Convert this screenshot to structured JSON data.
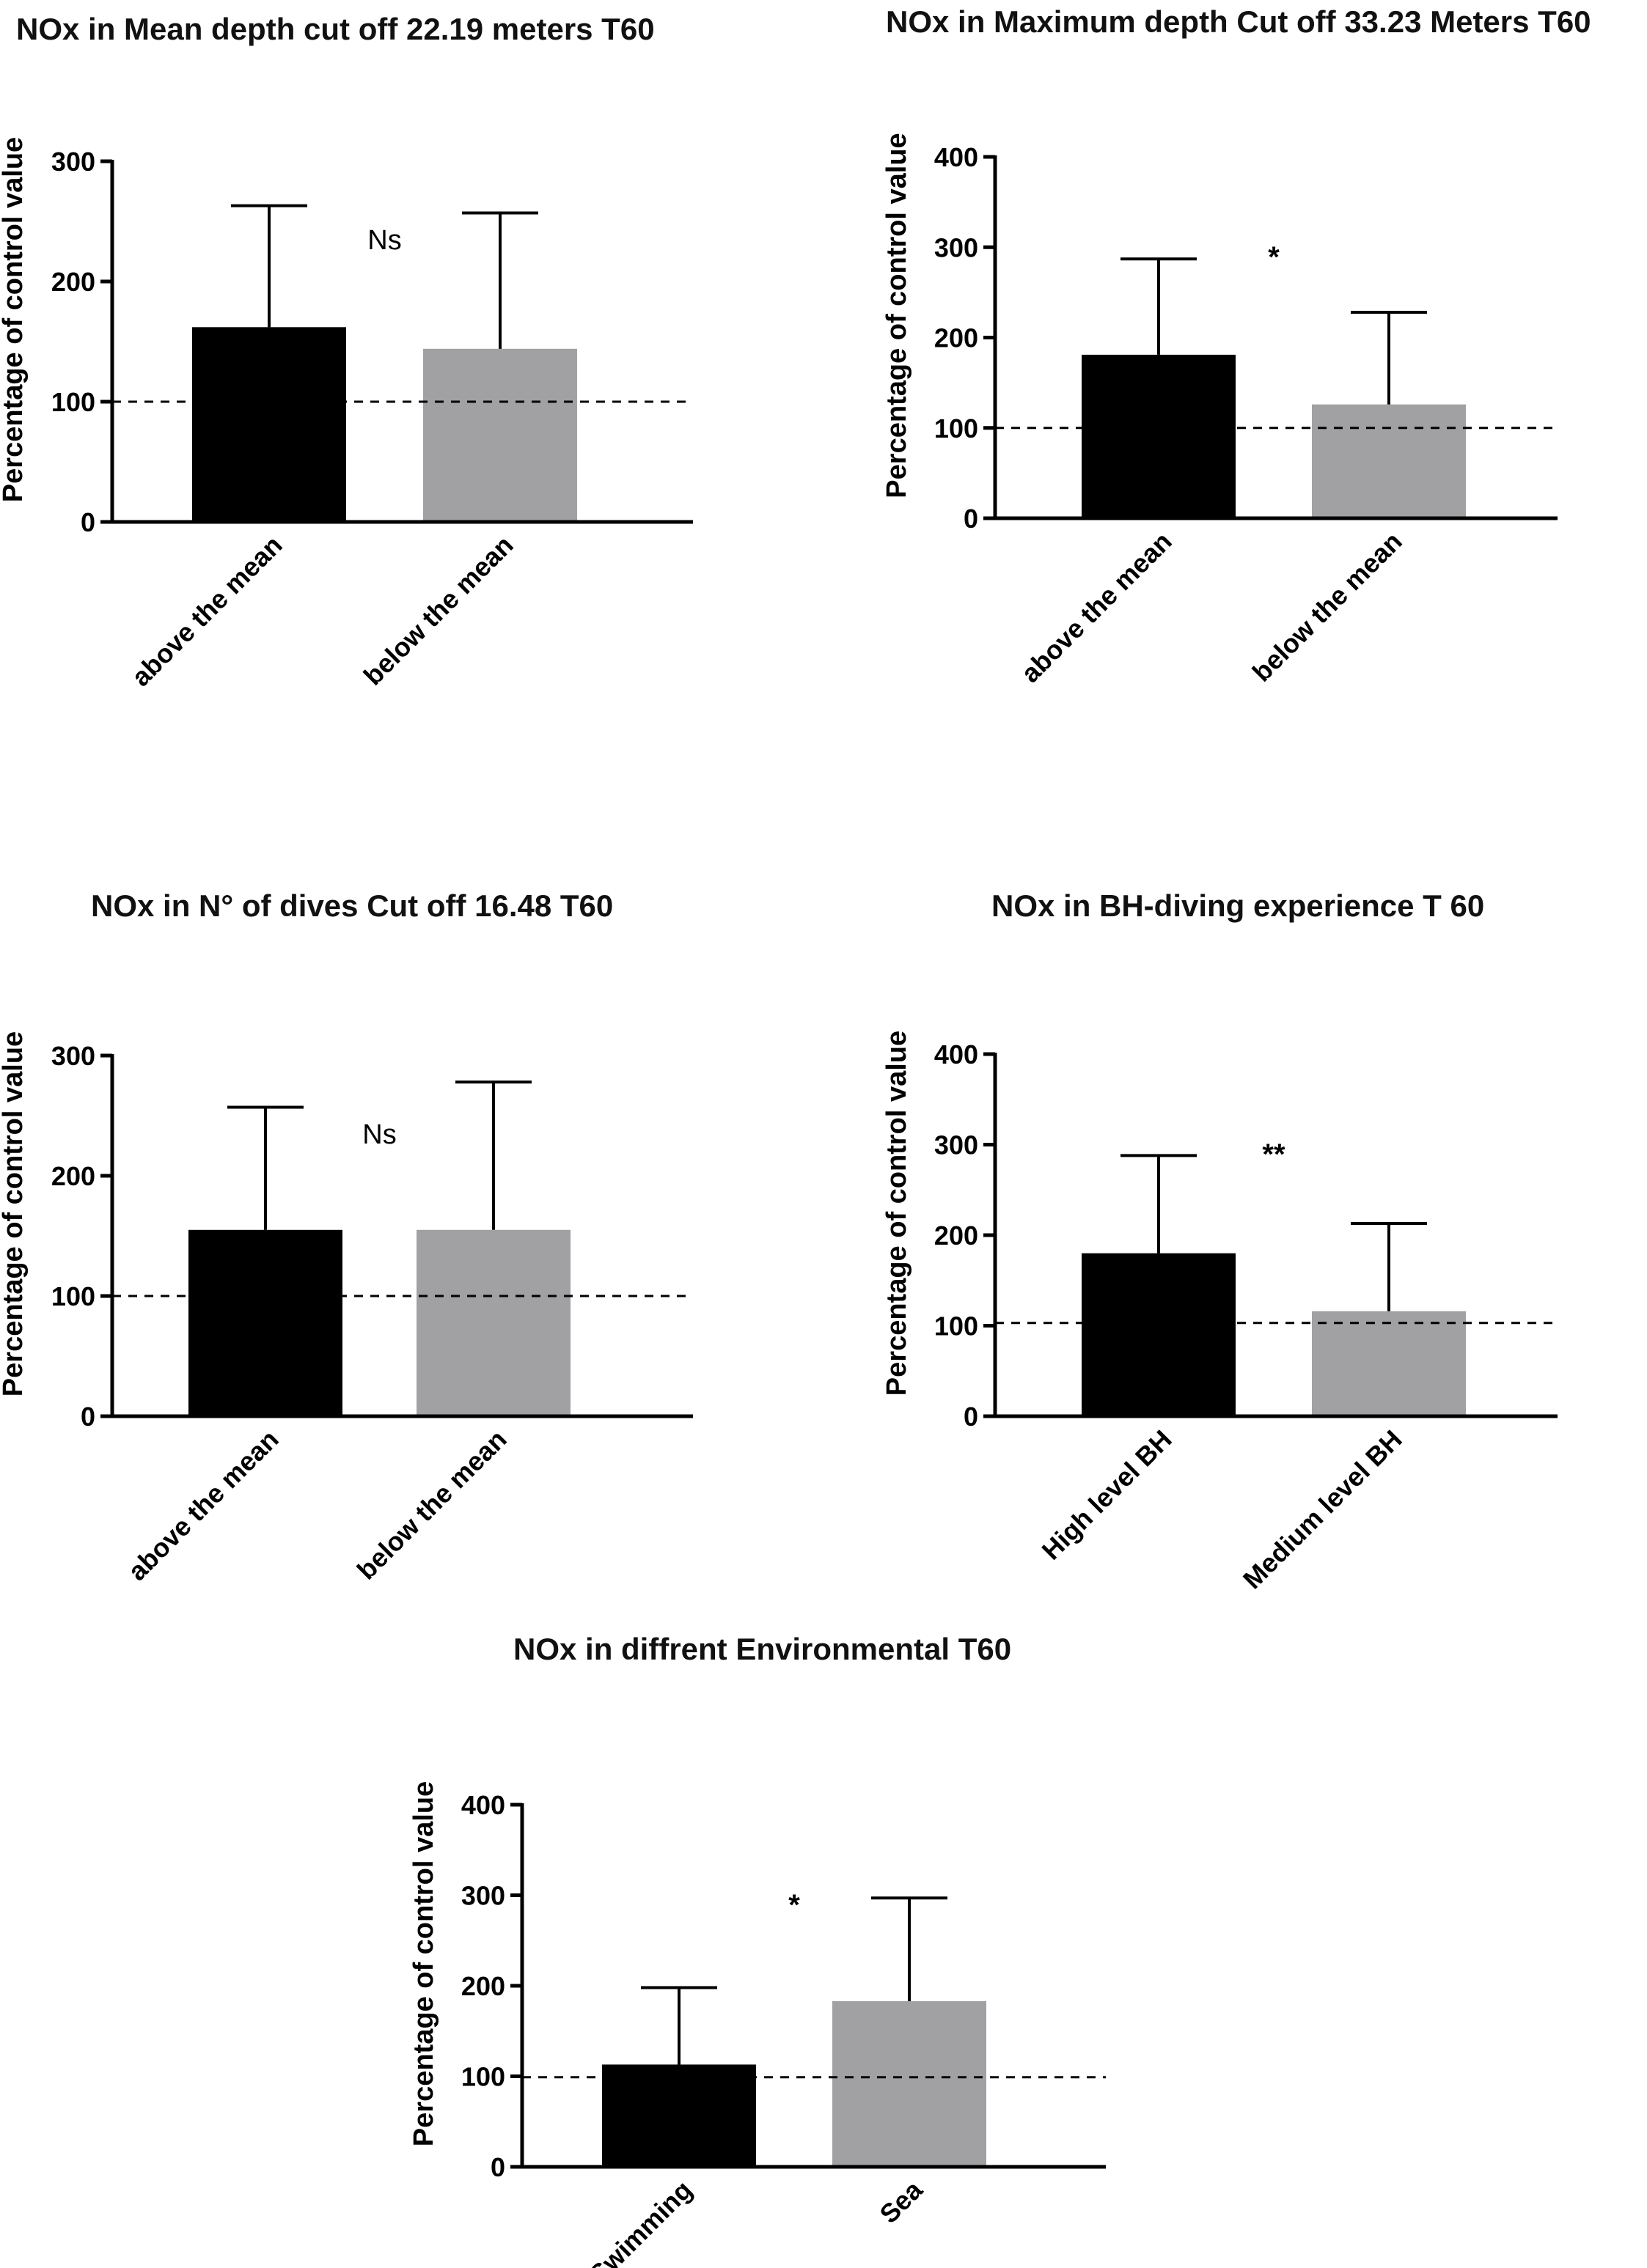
{
  "chart_data": [
    {
      "type": "bar",
      "title": "NOx in Mean depth cut off 22.19 meters T60",
      "ylabel": "Percentage of control value",
      "xlabel": "",
      "ylim": [
        0,
        300
      ],
      "yticks": [
        "0",
        "100",
        "200",
        "300"
      ],
      "categories": [
        "above the mean",
        "below the mean"
      ],
      "values": [
        162,
        144
      ],
      "error_upper": [
        263,
        257
      ],
      "bar_colors": [
        "#000000",
        "#a1a1a4"
      ],
      "reference_line": 100,
      "significance": "Ns",
      "grid": false
    },
    {
      "type": "bar",
      "title": "NOx in Maximum depth Cut off 33.23 Meters T60",
      "ylabel": "Percentage of control value",
      "xlabel": "",
      "ylim": [
        0,
        400
      ],
      "yticks": [
        "0",
        "100",
        "200",
        "300",
        "400"
      ],
      "categories": [
        "above the mean",
        "below the mean"
      ],
      "values": [
        181,
        126
      ],
      "error_upper": [
        287,
        228
      ],
      "bar_colors": [
        "#000000",
        "#a1a1a4"
      ],
      "reference_line": 100,
      "significance": "*",
      "grid": false
    },
    {
      "type": "bar",
      "title": "NOx in N° of dives Cut off 16.48 T60",
      "ylabel": "Percentage of control value",
      "xlabel": "",
      "ylim": [
        0,
        300
      ],
      "yticks": [
        "0",
        "100",
        "200",
        "300"
      ],
      "categories": [
        "above the mean",
        "below the mean"
      ],
      "values": [
        155,
        155
      ],
      "error_upper": [
        257,
        278
      ],
      "bar_colors": [
        "#000000",
        "#a1a1a4"
      ],
      "reference_line": 100,
      "significance": "Ns",
      "grid": false
    },
    {
      "type": "bar",
      "title": "NOx in BH-diving experience T 60",
      "ylabel": "Percentage of control value",
      "xlabel": "",
      "ylim": [
        0,
        400
      ],
      "yticks": [
        "0",
        "100",
        "200",
        "300",
        "400"
      ],
      "categories": [
        "High level BH",
        "Medium level BH"
      ],
      "values": [
        180,
        116
      ],
      "error_upper": [
        288,
        213
      ],
      "bar_colors": [
        "#000000",
        "#a1a1a4"
      ],
      "reference_line": 103,
      "significance": "**",
      "grid": false
    },
    {
      "type": "bar",
      "title": "NOx in diffrent Environmental T60",
      "ylabel": "Percentage of control value",
      "xlabel": "",
      "ylim": [
        0,
        400
      ],
      "yticks": [
        "0",
        "100",
        "200",
        "300",
        "400"
      ],
      "categories": [
        "Swimming",
        "Sea"
      ],
      "values": [
        113,
        183
      ],
      "error_upper": [
        198,
        297
      ],
      "bar_colors": [
        "#000000",
        "#a1a1a4"
      ],
      "reference_line": 99,
      "significance": "*",
      "grid": false
    }
  ]
}
